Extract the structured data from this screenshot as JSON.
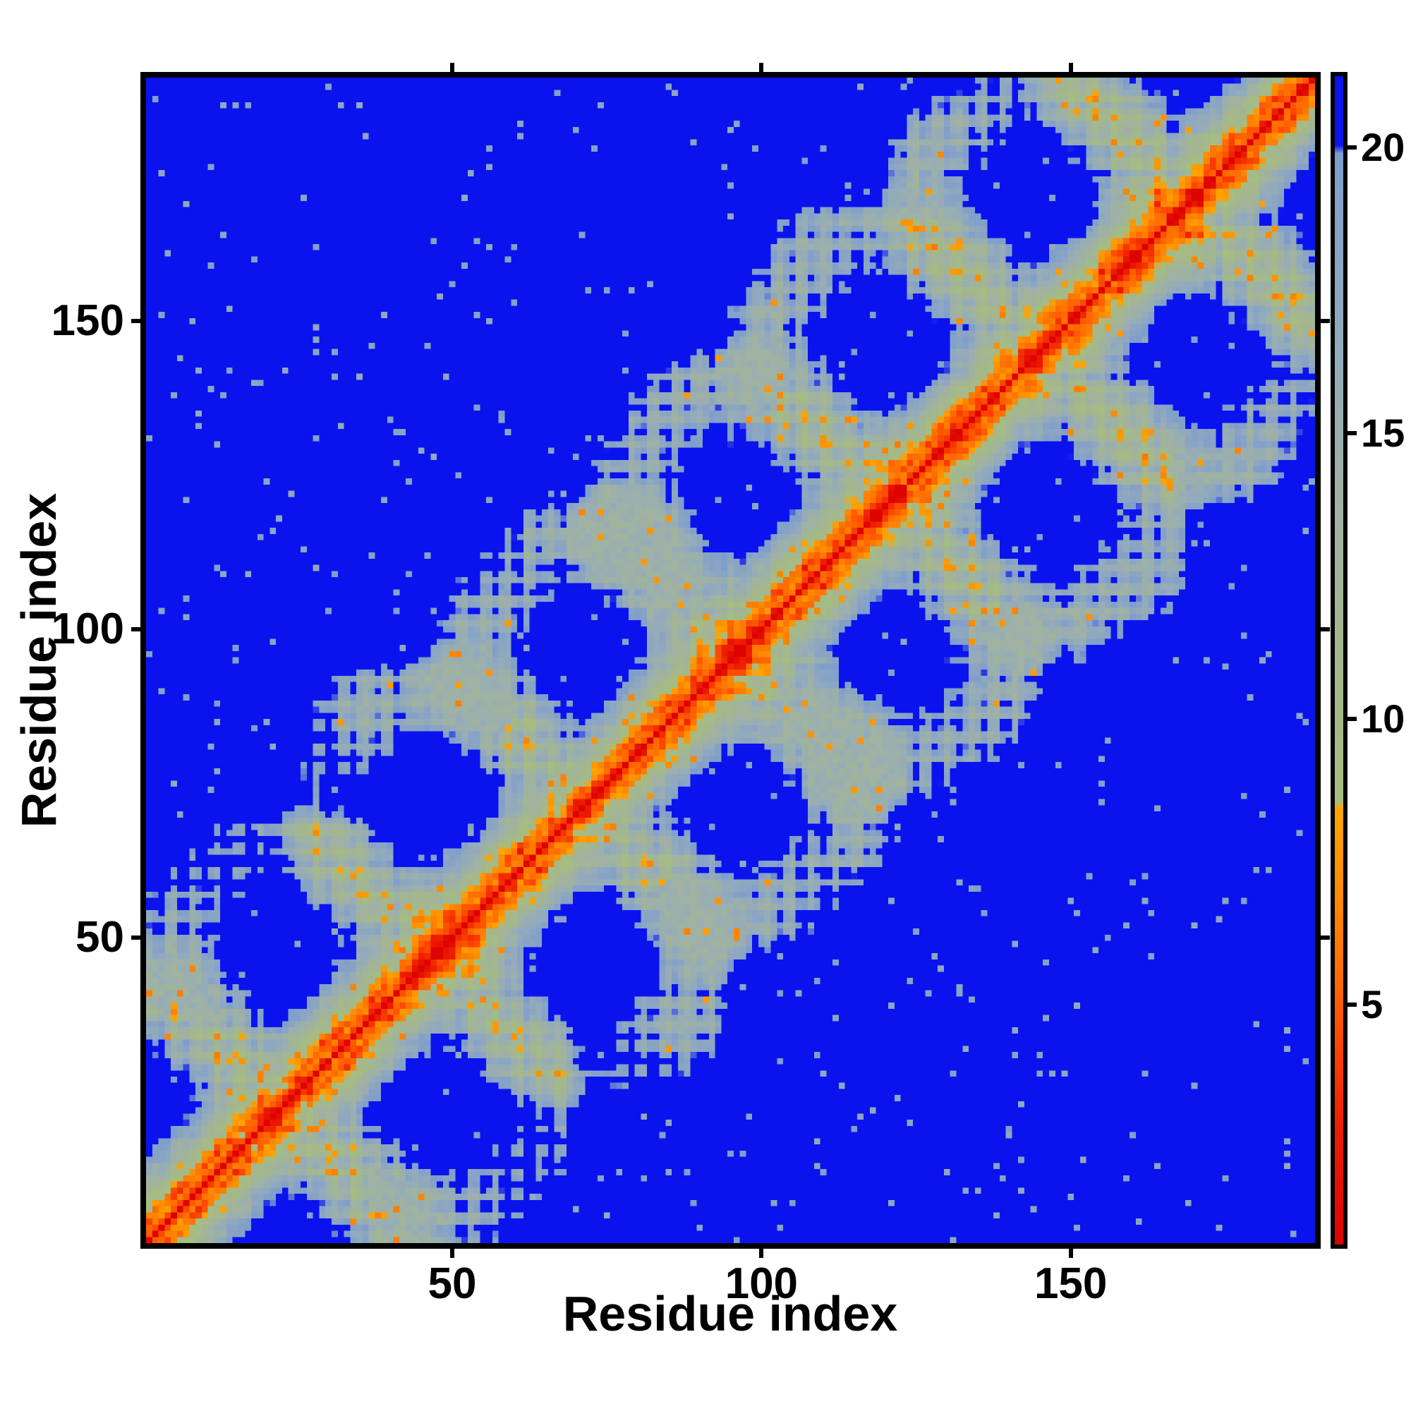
{
  "figure": {
    "background": "#ffffff"
  },
  "chart_data": {
    "type": "heatmap",
    "title": "",
    "xlabel": "Residue index",
    "ylabel": "Residue index",
    "x_ticks": [
      50,
      100,
      150
    ],
    "y_ticks": [
      50,
      100,
      150
    ],
    "axis_range": [
      0.5,
      189.5
    ],
    "n_residues": 189,
    "grid": false,
    "legend": "none",
    "colorbar": {
      "position": "right",
      "ticks": [
        5,
        10,
        15,
        20
      ],
      "vmin": 0.8,
      "vmax": 21.25
    },
    "colors": {
      "far_background": "#0a13ee",
      "near_diagonal": "#dd0300",
      "orange_band": "#fe8b02",
      "mid_sage": "#a3b690",
      "pale_steel": "#7f9dcc",
      "frame": "#000000"
    },
    "colormap_stops": [
      [
        0.8,
        "#dd0300"
      ],
      [
        2.8,
        "#ee1c00"
      ],
      [
        4.2,
        "#fb4200"
      ],
      [
        5.4,
        "#ff6a02"
      ],
      [
        7.0,
        "#fe8b02"
      ],
      [
        8.45,
        "#ffa303"
      ],
      [
        8.55,
        "#a6bd80"
      ],
      [
        11.5,
        "#a3b690"
      ],
      [
        14.0,
        "#9fb1a5"
      ],
      [
        16.5,
        "#93abbc"
      ],
      [
        19.9,
        "#7f9dcc"
      ],
      [
        20.05,
        "#0a13ee"
      ],
      [
        21.25,
        "#0a13ee"
      ]
    ],
    "structure": {
      "n": 189,
      "rise": 1.5,
      "ca_radius": 2.3,
      "twist_deg": 99.7,
      "helices": [
        {
          "len": 20,
          "cx": 0.0,
          "cy": 0.0,
          "dir": 1,
          "loop": 5
        },
        {
          "len": 18,
          "cx": 10.5,
          "cy": 4.8,
          "dir": -1,
          "loop": 6
        },
        {
          "len": 20,
          "cx": 21.0,
          "cy": -0.3,
          "dir": 1,
          "loop": 5
        },
        {
          "len": 19,
          "cx": 31.2,
          "cy": 5.6,
          "dir": -1,
          "loop": 6
        },
        {
          "len": 18,
          "cx": 41.0,
          "cy": 0.2,
          "dir": 1,
          "loop": 5
        },
        {
          "len": 20,
          "cx": 50.6,
          "cy": 6.1,
          "dir": -1,
          "loop": 6
        },
        {
          "len": 18,
          "cx": 60.2,
          "cy": -0.4,
          "dir": 1,
          "loop": 7
        },
        {
          "len": 16,
          "cx": 69.2,
          "cy": 5.2,
          "dir": -1,
          "loop": 0
        }
      ],
      "coord_jitter": 1.25,
      "pair_noise": 0.85,
      "patches": [
        [
          11,
          170,
          4,
          5
        ],
        [
          18,
          170,
          4,
          5
        ],
        [
          12,
          157,
          3,
          4.5
        ],
        [
          33,
          159,
          4,
          5
        ],
        [
          23,
          159,
          2.5,
          4
        ],
        [
          14,
          104,
          6,
          5.5
        ],
        [
          31,
          101,
          6,
          5.5
        ],
        [
          8,
          49,
          5,
          5.5
        ],
        [
          34,
          89,
          5,
          5.5
        ],
        [
          49,
          91,
          5,
          5
        ],
        [
          58,
          101,
          5,
          5
        ],
        [
          70,
          113,
          5,
          5
        ],
        [
          84,
          120,
          7,
          6
        ],
        [
          88,
          140,
          6,
          5.5
        ],
        [
          105,
          165,
          6,
          5.5
        ],
        [
          125,
          178,
          5,
          5
        ],
        [
          100,
          150,
          5,
          5
        ],
        [
          63,
          120,
          4,
          4.5
        ],
        [
          40,
          80,
          4,
          4.5
        ]
      ],
      "speck_prob": 0.016,
      "orange_dot_prob": 0.03
    }
  }
}
